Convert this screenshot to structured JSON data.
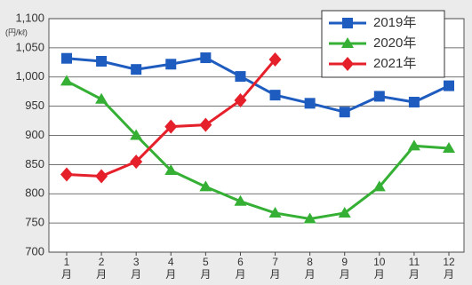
{
  "chart_data": {
    "type": "line",
    "y_unit_label": "(円/kℓ)",
    "categories": [
      "1\n月",
      "2\n月",
      "3\n月",
      "4\n月",
      "5\n月",
      "6\n月",
      "7\n月",
      "8\n月",
      "9\n月",
      "10\n月",
      "11\n月",
      "12\n月"
    ],
    "series": [
      {
        "name": "2019年",
        "color": "#1f5cbf",
        "marker": "square",
        "values": [
          1032,
          1027,
          1013,
          1022,
          1033,
          1001,
          969,
          955,
          940,
          967,
          957,
          985
        ]
      },
      {
        "name": "2020年",
        "color": "#35b035",
        "marker": "triangle",
        "values": [
          993,
          962,
          900,
          840,
          812,
          787,
          767,
          757,
          767,
          812,
          882,
          878
        ]
      },
      {
        "name": "2021年",
        "color": "#e5202a",
        "marker": "diamond",
        "values": [
          833,
          830,
          855,
          915,
          918,
          960,
          1030,
          null,
          null,
          null,
          null,
          null
        ]
      }
    ],
    "ylim": [
      700,
      1100
    ],
    "yticks": [
      700,
      750,
      800,
      850,
      900,
      950,
      {
        "value": 1000,
        "label": "1,000"
      },
      {
        "value": 1050,
        "label": "1,050"
      },
      {
        "value": 1100,
        "label": "1,100"
      }
    ],
    "grid": true,
    "legend": "top-right"
  }
}
